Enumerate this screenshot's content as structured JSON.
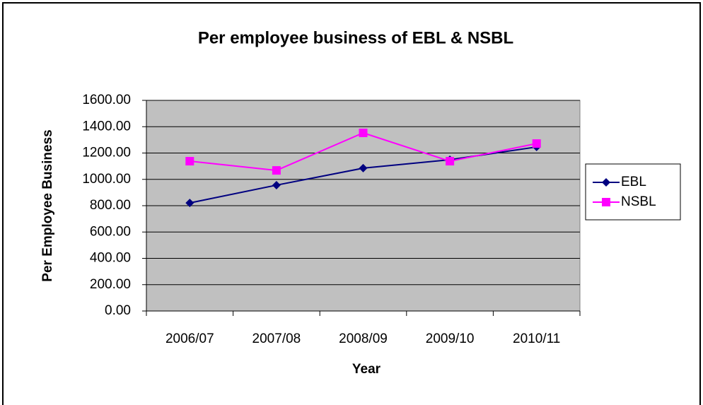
{
  "chart_data": {
    "type": "line",
    "title": "Per employee business of EBL & NSBL",
    "x_label": "Year",
    "y_label": "Per Employee Business",
    "categories": [
      "2006/07",
      "2007/08",
      "2008/09",
      "2009/10",
      "2010/11"
    ],
    "series": [
      {
        "name": "EBL",
        "color": "#000080",
        "marker": "diamond",
        "values": [
          821,
          956,
          1085,
          1149,
          1246
        ]
      },
      {
        "name": "NSBL",
        "color": "#ff00ff",
        "marker": "square",
        "values": [
          1138,
          1068,
          1353,
          1138,
          1272
        ]
      }
    ],
    "ylim": [
      0,
      1600
    ],
    "yticks": [
      {
        "value": 0,
        "label": "0.00"
      },
      {
        "value": 200,
        "label": "200.00"
      },
      {
        "value": 400,
        "label": "400.00"
      },
      {
        "value": 600,
        "label": "600.00"
      },
      {
        "value": 800,
        "label": "800.00"
      },
      {
        "value": 1000,
        "label": "1000.00"
      },
      {
        "value": 1200,
        "label": "1200.00"
      },
      {
        "value": 1400,
        "label": "1400.00"
      },
      {
        "value": 1600,
        "label": "1600.00"
      }
    ],
    "grid": true,
    "legend": "right",
    "plot_background": "#c0c0c0"
  }
}
